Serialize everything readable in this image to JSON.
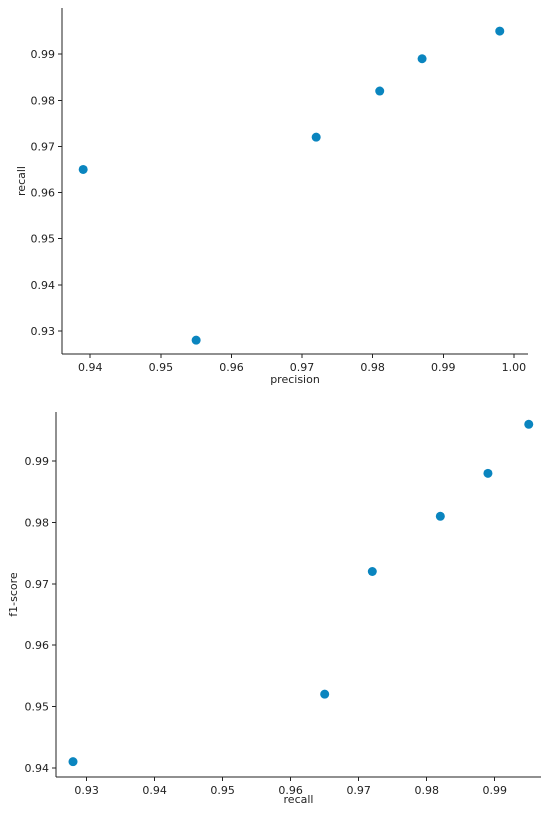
{
  "colors": {
    "point": "#0a85bf",
    "axis": "#222222"
  },
  "chart_data": [
    {
      "type": "scatter",
      "title": "",
      "xlabel": "precision",
      "ylabel": "recall",
      "xlim": [
        0.936,
        1.002
      ],
      "ylim": [
        0.925,
        1.0
      ],
      "x_ticks": [
        0.94,
        0.95,
        0.96,
        0.97,
        0.98,
        0.99,
        1.0
      ],
      "x_tick_labels": [
        "0.94",
        "0.95",
        "0.96",
        "0.97",
        "0.98",
        "0.99",
        "1.00"
      ],
      "y_ticks": [
        0.93,
        0.94,
        0.95,
        0.96,
        0.97,
        0.98,
        0.99
      ],
      "y_tick_labels": [
        "0.93",
        "0.94",
        "0.95",
        "0.96",
        "0.97",
        "0.98",
        "0.99"
      ],
      "grid": false,
      "points": [
        {
          "x": 0.939,
          "y": 0.965
        },
        {
          "x": 0.955,
          "y": 0.928
        },
        {
          "x": 0.972,
          "y": 0.972
        },
        {
          "x": 0.981,
          "y": 0.982
        },
        {
          "x": 0.987,
          "y": 0.989
        },
        {
          "x": 0.998,
          "y": 0.995
        }
      ]
    },
    {
      "type": "scatter",
      "title": "",
      "xlabel": "recall",
      "ylabel": "f1-score",
      "xlim": [
        0.9255,
        0.9968
      ],
      "ylim": [
        0.9385,
        0.998
      ],
      "x_ticks": [
        0.93,
        0.94,
        0.95,
        0.96,
        0.97,
        0.98,
        0.99
      ],
      "x_tick_labels": [
        "0.93",
        "0.94",
        "0.95",
        "0.96",
        "0.97",
        "0.98",
        "0.99"
      ],
      "y_ticks": [
        0.94,
        0.95,
        0.96,
        0.97,
        0.98,
        0.99
      ],
      "y_tick_labels": [
        "0.94",
        "0.95",
        "0.96",
        "0.97",
        "0.98",
        "0.99"
      ],
      "grid": false,
      "points": [
        {
          "x": 0.928,
          "y": 0.941
        },
        {
          "x": 0.965,
          "y": 0.952
        },
        {
          "x": 0.972,
          "y": 0.972
        },
        {
          "x": 0.982,
          "y": 0.981
        },
        {
          "x": 0.989,
          "y": 0.988
        },
        {
          "x": 0.995,
          "y": 0.996
        }
      ]
    }
  ]
}
